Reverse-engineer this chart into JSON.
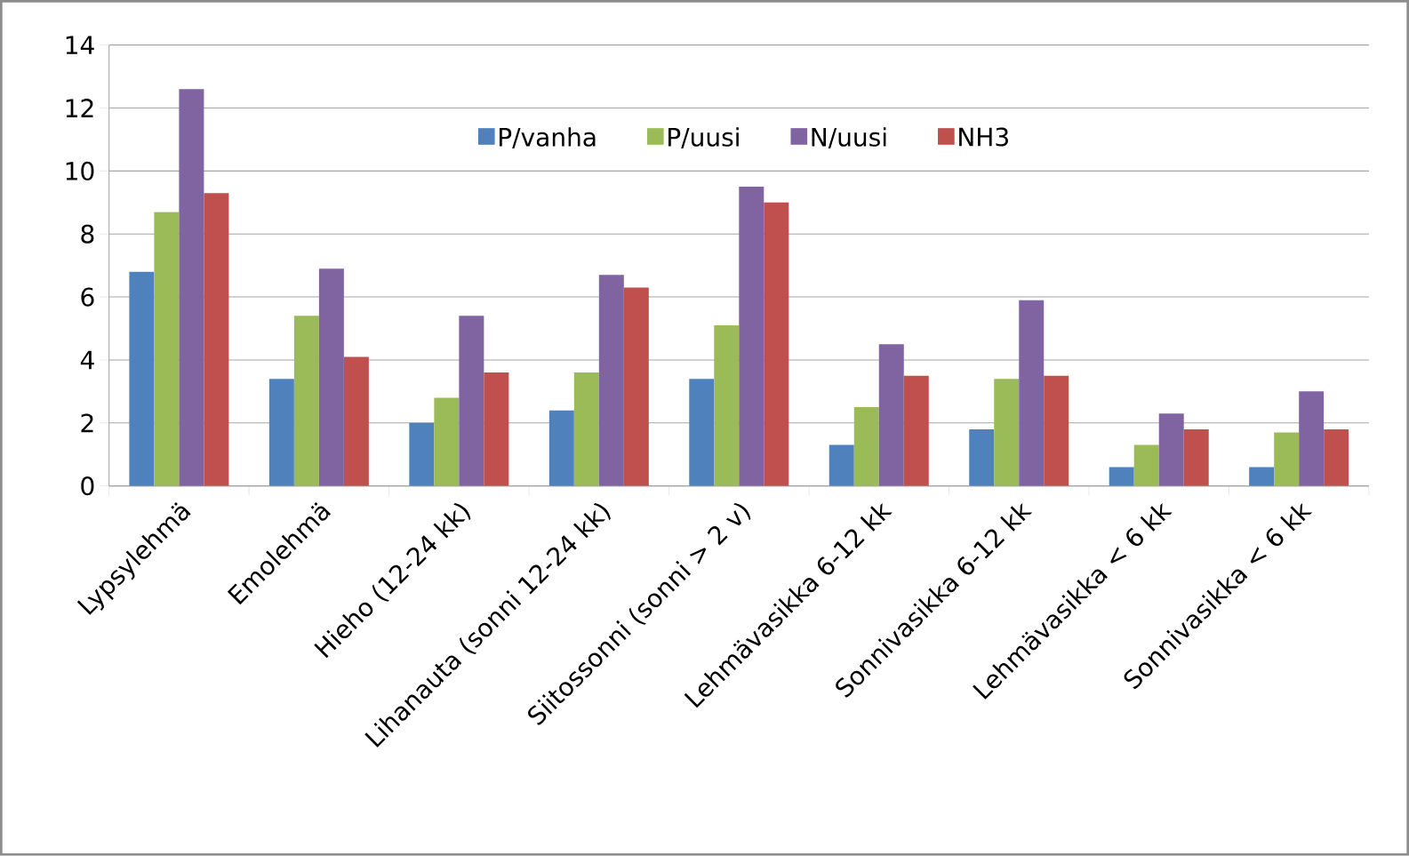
{
  "chart_data": {
    "type": "bar",
    "categories": [
      "Lypsylehmä",
      "Emolehmä",
      "Hieho (12-24 kk)",
      "Lihanauta (sonni 12-24 kk)",
      "Siitossonni (sonni > 2 v)",
      "Lehmävasikka 6-12 kk",
      "Sonnivasikka 6-12 kk",
      "Lehmävasikka < 6 kk",
      "Sonnivasikka < 6 kk"
    ],
    "series": [
      {
        "name": "P/vanha",
        "color": "#4f81bd",
        "values": [
          6.8,
          3.4,
          2.0,
          2.4,
          3.4,
          1.3,
          1.8,
          0.6,
          0.6
        ]
      },
      {
        "name": "P/uusi",
        "color": "#9bbb59",
        "values": [
          8.7,
          5.4,
          2.8,
          3.6,
          5.1,
          2.5,
          3.4,
          1.3,
          1.7
        ]
      },
      {
        "name": "N/uusi",
        "color": "#8064a2",
        "values": [
          12.6,
          6.9,
          5.4,
          6.7,
          9.5,
          4.5,
          5.9,
          2.3,
          3.0
        ]
      },
      {
        "name": "NH3",
        "color": "#c0504d",
        "values": [
          9.3,
          4.1,
          3.6,
          6.3,
          9.0,
          3.5,
          3.5,
          1.8,
          1.8
        ]
      }
    ],
    "ylim": [
      0,
      14
    ],
    "yticks": [
      0,
      2,
      4,
      6,
      8,
      10,
      12,
      14
    ],
    "grid": "y",
    "legend": "top"
  }
}
